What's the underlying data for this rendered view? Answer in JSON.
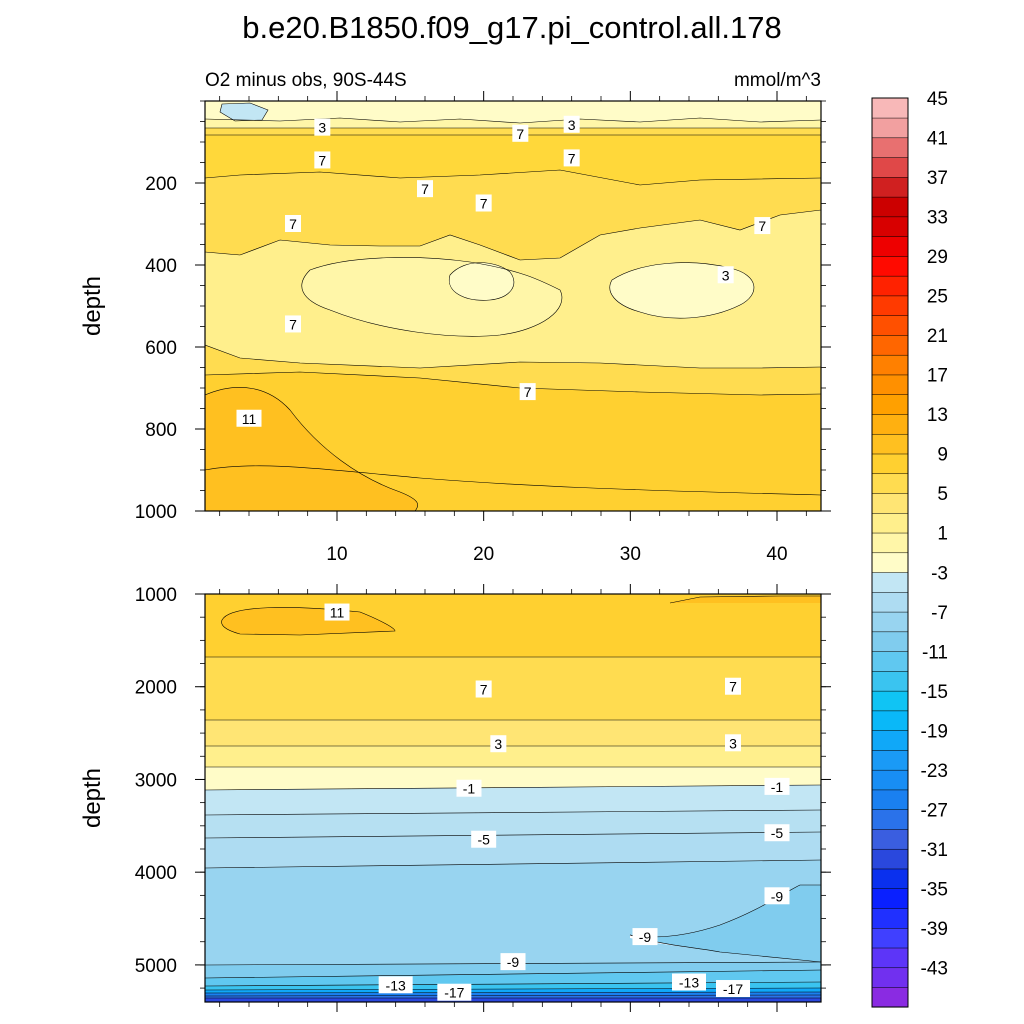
{
  "title": "b.e20.B1850.f09_g17.pi_control.all.178",
  "panels": {
    "top": {
      "left_label": "O2 minus obs, 90S-44S",
      "right_label": "mmol/m^3",
      "ylabel": "depth"
    },
    "bottom": {
      "ylabel": "depth"
    }
  },
  "colors": {
    "levels": [
      -45,
      -43,
      -41,
      -39,
      -37,
      -35,
      -33,
      -31,
      -29,
      -27,
      -25,
      -23,
      -21,
      -19,
      -17,
      -15,
      -13,
      -11,
      -9,
      -7,
      -5,
      -3,
      -1,
      1,
      3,
      5,
      7,
      9,
      11,
      13,
      15,
      17,
      19,
      21,
      23,
      25,
      27,
      29,
      31,
      33,
      35,
      37,
      39,
      41,
      43,
      45,
      47
    ],
    "fills": [
      "#8a2be2",
      "#7130ef",
      "#5d35f8",
      "#4040ff",
      "#2030ff",
      "#0a20ff",
      "#0a30ee",
      "#2a48dd",
      "#3a5ee0",
      "#2a72ea",
      "#1a80f0",
      "#188ef4",
      "#1a9af6",
      "#10a8f8",
      "#0ab8f8",
      "#10c4f4",
      "#3ac4f0",
      "#60c8f0",
      "#80ccee",
      "#98d4f0",
      "#aedcf2",
      "#c2e6f4",
      "#fffcc8",
      "#fff6a8",
      "#ffef8c",
      "#ffe574",
      "#ffdc50",
      "#ffd030",
      "#ffc020",
      "#ffb010",
      "#ffa000",
      "#ff9000",
      "#ff8000",
      "#ff6600",
      "#ff5000",
      "#ff3a00",
      "#ff2200",
      "#ff0a00",
      "#ee0000",
      "#d80000",
      "#cc0000",
      "#d02020",
      "#e04848",
      "#e87070",
      "#f2a0a0",
      "#f8b8b8"
    ]
  },
  "chart_data": [
    {
      "type": "contour",
      "panel": "top",
      "title": "b.e20.B1850.f09_g17.pi_control.all.178",
      "left_label": "O2 minus obs, 90S-44S",
      "units": "mmol/m^3",
      "xlabel": "",
      "ylabel": "depth",
      "xlim": [
        1,
        43
      ],
      "ylim": [
        1000,
        0
      ],
      "xticks": [
        10,
        20,
        30,
        40
      ],
      "yticks": [
        200,
        400,
        600,
        800,
        1000
      ],
      "contour_labels": [
        {
          "text": "3",
          "x": 9,
          "y": 65
        },
        {
          "text": "7",
          "x": 22.5,
          "y": 80
        },
        {
          "text": "3",
          "x": 26,
          "y": 58
        },
        {
          "text": "7",
          "x": 9,
          "y": 145
        },
        {
          "text": "7",
          "x": 26,
          "y": 140
        },
        {
          "text": "7",
          "x": 16,
          "y": 215
        },
        {
          "text": "7",
          "x": 20,
          "y": 250
        },
        {
          "text": "7",
          "x": 7,
          "y": 300
        },
        {
          "text": "7",
          "x": 39,
          "y": 305
        },
        {
          "text": "3",
          "x": 36.5,
          "y": 425
        },
        {
          "text": "7",
          "x": 7,
          "y": 545
        },
        {
          "text": "7",
          "x": 23,
          "y": 710
        },
        {
          "text": "11",
          "x": 4,
          "y": 775
        }
      ]
    },
    {
      "type": "contour",
      "panel": "bottom",
      "xlim": [
        1,
        43
      ],
      "ylim": [
        5400,
        1000
      ],
      "ylabel": "depth",
      "yticks": [
        1000,
        2000,
        3000,
        4000,
        5000
      ],
      "contour_labels": [
        {
          "text": "11",
          "x": 10,
          "y": 1200
        },
        {
          "text": "7",
          "x": 20,
          "y": 2030
        },
        {
          "text": "7",
          "x": 37,
          "y": 2000
        },
        {
          "text": "3",
          "x": 21,
          "y": 2620
        },
        {
          "text": "3",
          "x": 37,
          "y": 2610
        },
        {
          "text": "-1",
          "x": 19,
          "y": 3100
        },
        {
          "text": "-1",
          "x": 40,
          "y": 3080
        },
        {
          "text": "-5",
          "x": 20,
          "y": 3650
        },
        {
          "text": "-5",
          "x": 40,
          "y": 3580
        },
        {
          "text": "-9",
          "x": 40,
          "y": 4260
        },
        {
          "text": "-9",
          "x": 31,
          "y": 4700
        },
        {
          "text": "-9",
          "x": 22,
          "y": 4970
        },
        {
          "text": "-13",
          "x": 14,
          "y": 5220
        },
        {
          "text": "-17",
          "x": 18,
          "y": 5300
        },
        {
          "text": "-13",
          "x": 34,
          "y": 5190
        },
        {
          "text": "-17",
          "x": 37,
          "y": 5260
        }
      ]
    }
  ],
  "colorbar": {
    "labels": [
      "45",
      "41",
      "37",
      "33",
      "29",
      "25",
      "21",
      "17",
      "13",
      "9",
      "5",
      "1",
      "-3",
      "-7",
      "-11",
      "-15",
      "-19",
      "-23",
      "-27",
      "-31",
      "-35",
      "-39",
      "-43"
    ]
  }
}
